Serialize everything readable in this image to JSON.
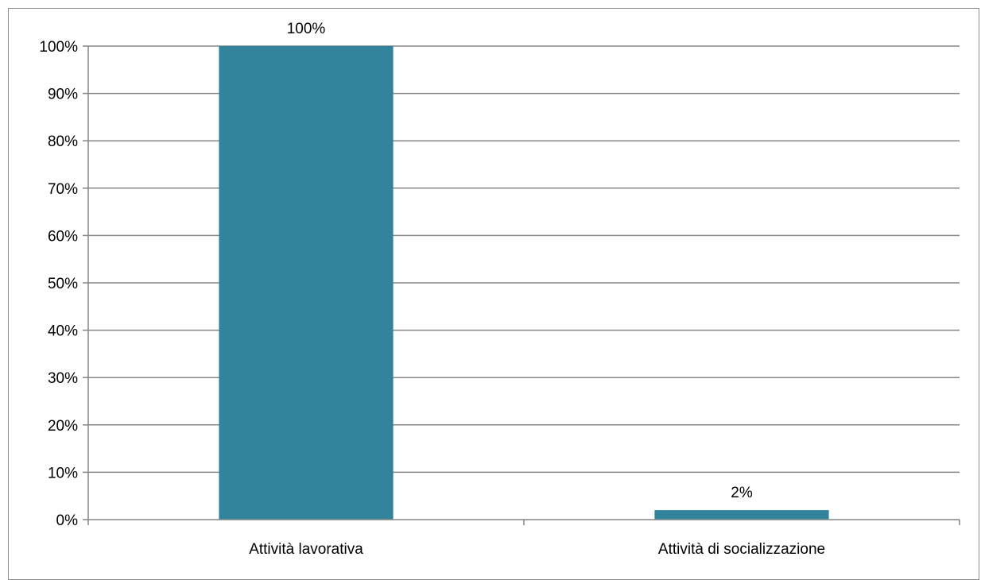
{
  "chart_data": {
    "type": "bar",
    "categories": [
      "Attività lavorativa",
      "Attività di socializzazione"
    ],
    "values": [
      100,
      2
    ],
    "data_labels": [
      "100%",
      "2%"
    ],
    "ylim": [
      0,
      100
    ],
    "yticks": [
      "0%",
      "10%",
      "20%",
      "30%",
      "40%",
      "50%",
      "60%",
      "70%",
      "80%",
      "90%",
      "100%"
    ],
    "grid": true,
    "bar_color": "#31849b",
    "grid_color": "#868686",
    "axis_color": "#868686"
  }
}
